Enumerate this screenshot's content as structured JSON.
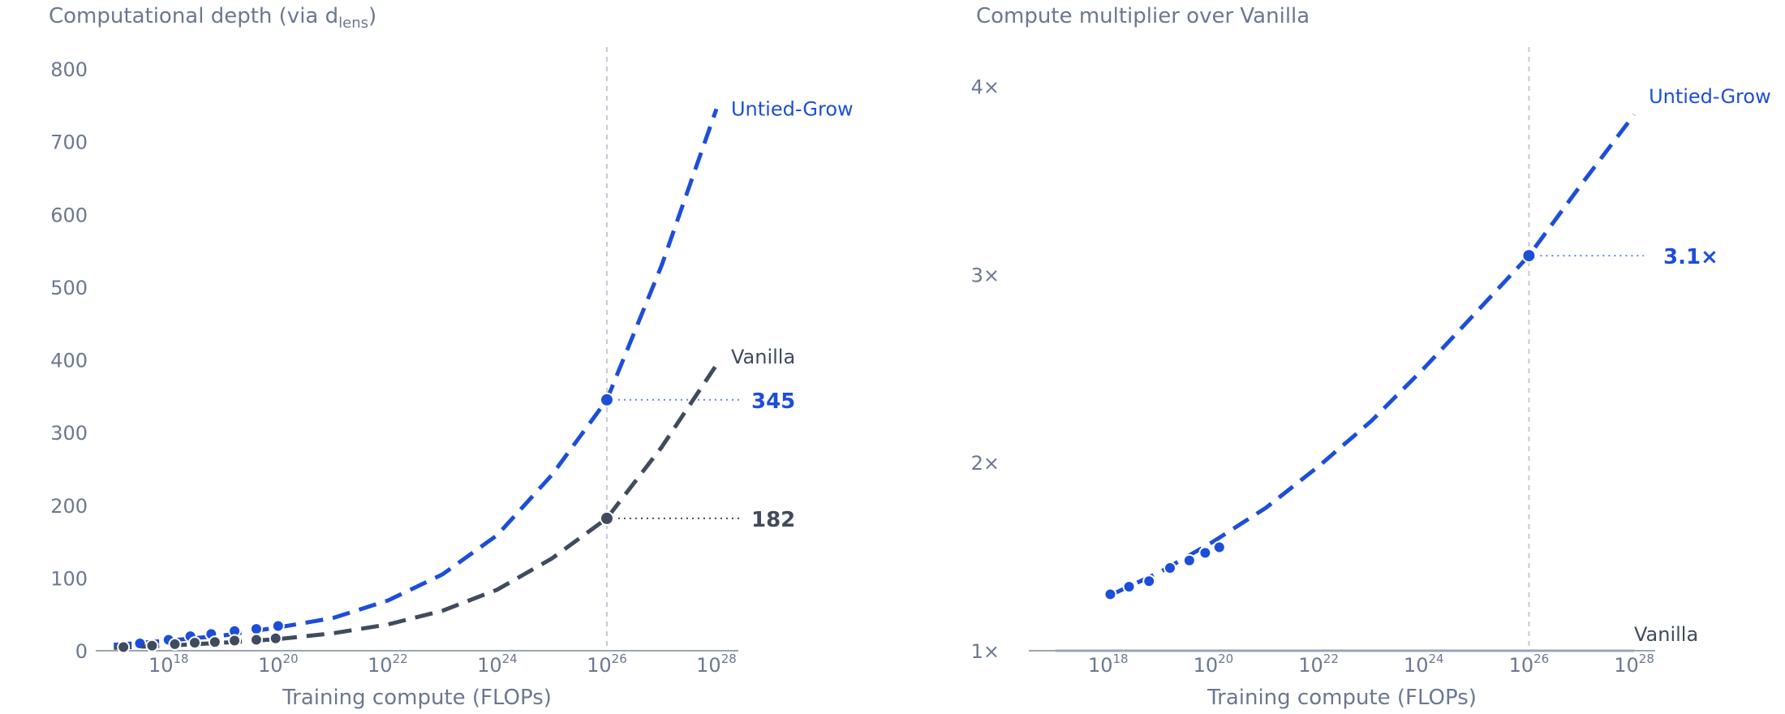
{
  "colors": {
    "untied": "#1d4ed8",
    "untied_light": "#5a86e8",
    "vanilla": "#3f4b5e",
    "axis": "#9aa4b4",
    "text": "#6b7890",
    "guide": "#c3cad6"
  },
  "chart_data": [
    {
      "type": "line",
      "title_main": "Computational depth (via d",
      "title_sub": "lens",
      "title_end": ")",
      "xlabel": "Training compute (FLOPs)",
      "x_scale": "log10",
      "xlim": [
        1e+17,
        1e+28
      ],
      "ylim": [
        0,
        800
      ],
      "yticks": [
        {
          "value": 0,
          "label": "0"
        },
        {
          "value": 100,
          "label": "100"
        },
        {
          "value": 200,
          "label": "200"
        },
        {
          "value": 300,
          "label": "300"
        },
        {
          "value": 400,
          "label": "400"
        },
        {
          "value": 500,
          "label": "500"
        },
        {
          "value": 600,
          "label": "600"
        },
        {
          "value": 700,
          "label": "700"
        },
        {
          "value": 800,
          "label": "800"
        }
      ],
      "xticks": [
        {
          "value": 1e+18,
          "base": "10",
          "exp": "18"
        },
        {
          "value": 1e+20,
          "base": "10",
          "exp": "20"
        },
        {
          "value": 1e+22,
          "base": "10",
          "exp": "22"
        },
        {
          "value": 1e+24,
          "base": "10",
          "exp": "24"
        },
        {
          "value": 1e+26,
          "base": "10",
          "exp": "26"
        },
        {
          "value": 1e+28,
          "base": "10",
          "exp": "28"
        }
      ],
      "reference_x": 1e+26,
      "series": [
        {
          "name": "Untied-Grow",
          "key": "untied",
          "fit": [
            [
              1e+17,
              8
            ],
            [
              1e+18,
              14
            ],
            [
              1e+19,
              21
            ],
            [
              1e+20,
              32
            ],
            [
              1e+21,
              45
            ],
            [
              1e+22,
              69
            ],
            [
              1e+23,
              105
            ],
            [
              1e+24,
              159
            ],
            [
              1e+25,
              242
            ],
            [
              1e+26,
              345
            ],
            [
              1e+27,
              530
            ],
            [
              1e+28,
              745
            ]
          ],
          "points": [
            [
              3e+17,
              10
            ],
            [
              1e+18,
              15
            ],
            [
              2.5e+18,
              20
            ],
            [
              6e+18,
              23
            ],
            [
              1.6e+19,
              27
            ],
            [
              4e+19,
              30
            ],
            [
              1e+20,
              34
            ]
          ],
          "highlight": {
            "x": 1e+26,
            "y": 345,
            "label": "345"
          }
        },
        {
          "name": "Vanilla",
          "key": "vanilla",
          "fit": [
            [
              1e+17,
              4
            ],
            [
              1e+18,
              7
            ],
            [
              1e+19,
              11
            ],
            [
              1e+20,
              16
            ],
            [
              1e+21,
              24
            ],
            [
              1e+22,
              36
            ],
            [
              1e+23,
              55
            ],
            [
              1e+24,
              84
            ],
            [
              1e+25,
              127
            ],
            [
              1e+26,
              182
            ],
            [
              1e+27,
              280
            ],
            [
              1e+28,
              393
            ]
          ],
          "points": [
            [
              1.5e+17,
              5
            ],
            [
              5e+17,
              7
            ],
            [
              1.3e+18,
              9
            ],
            [
              3e+18,
              11
            ],
            [
              7e+18,
              12
            ],
            [
              1.6e+19,
              14
            ],
            [
              4e+19,
              15
            ],
            [
              9e+19,
              17
            ]
          ],
          "highlight": {
            "x": 1e+26,
            "y": 182,
            "label": "182"
          }
        }
      ]
    },
    {
      "type": "line",
      "title_main": "Compute multiplier over Vanilla",
      "xlabel": "Training compute (FLOPs)",
      "x_scale": "log10",
      "xlim": [
        1e+17,
        1e+28
      ],
      "ylim": [
        1,
        4.2
      ],
      "yticks": [
        {
          "value": 1,
          "label": "1×"
        },
        {
          "value": 2,
          "label": "2×"
        },
        {
          "value": 3,
          "label": "3×"
        },
        {
          "value": 4,
          "label": "4×"
        }
      ],
      "xticks": [
        {
          "value": 1e+18,
          "base": "10",
          "exp": "18"
        },
        {
          "value": 1e+20,
          "base": "10",
          "exp": "20"
        },
        {
          "value": 1e+22,
          "base": "10",
          "exp": "22"
        },
        {
          "value": 1e+24,
          "base": "10",
          "exp": "24"
        },
        {
          "value": 1e+26,
          "base": "10",
          "exp": "26"
        },
        {
          "value": 1e+28,
          "base": "10",
          "exp": "28"
        }
      ],
      "reference_x": 1e+26,
      "series": [
        {
          "name": "Untied-Grow",
          "key": "untied",
          "fit": [
            [
              1.2e+18,
              1.3
            ],
            [
              1e+19,
              1.42
            ],
            [
              1e+20,
              1.58
            ],
            [
              1e+21,
              1.76
            ],
            [
              1e+22,
              1.98
            ],
            [
              1e+23,
              2.22
            ],
            [
              1e+24,
              2.5
            ],
            [
              1e+25,
              2.8
            ],
            [
              1e+26,
              3.1
            ],
            [
              1e+27,
              3.48
            ],
            [
              1e+28,
              3.85
            ]
          ],
          "points": [
            [
              1.1e+18,
              1.3
            ],
            [
              2.5e+18,
              1.34
            ],
            [
              6e+18,
              1.37
            ],
            [
              1.5e+19,
              1.44
            ],
            [
              3.5e+19,
              1.48
            ],
            [
              7e+19,
              1.52
            ],
            [
              1.3e+20,
              1.55
            ]
          ],
          "highlight": {
            "x": 1e+26,
            "y": 3.1,
            "label": "3.1×"
          }
        },
        {
          "name": "Vanilla",
          "key": "vanilla",
          "fit": [
            [
              1e+17,
              1
            ],
            [
              1e+28,
              1
            ]
          ]
        }
      ]
    }
  ]
}
